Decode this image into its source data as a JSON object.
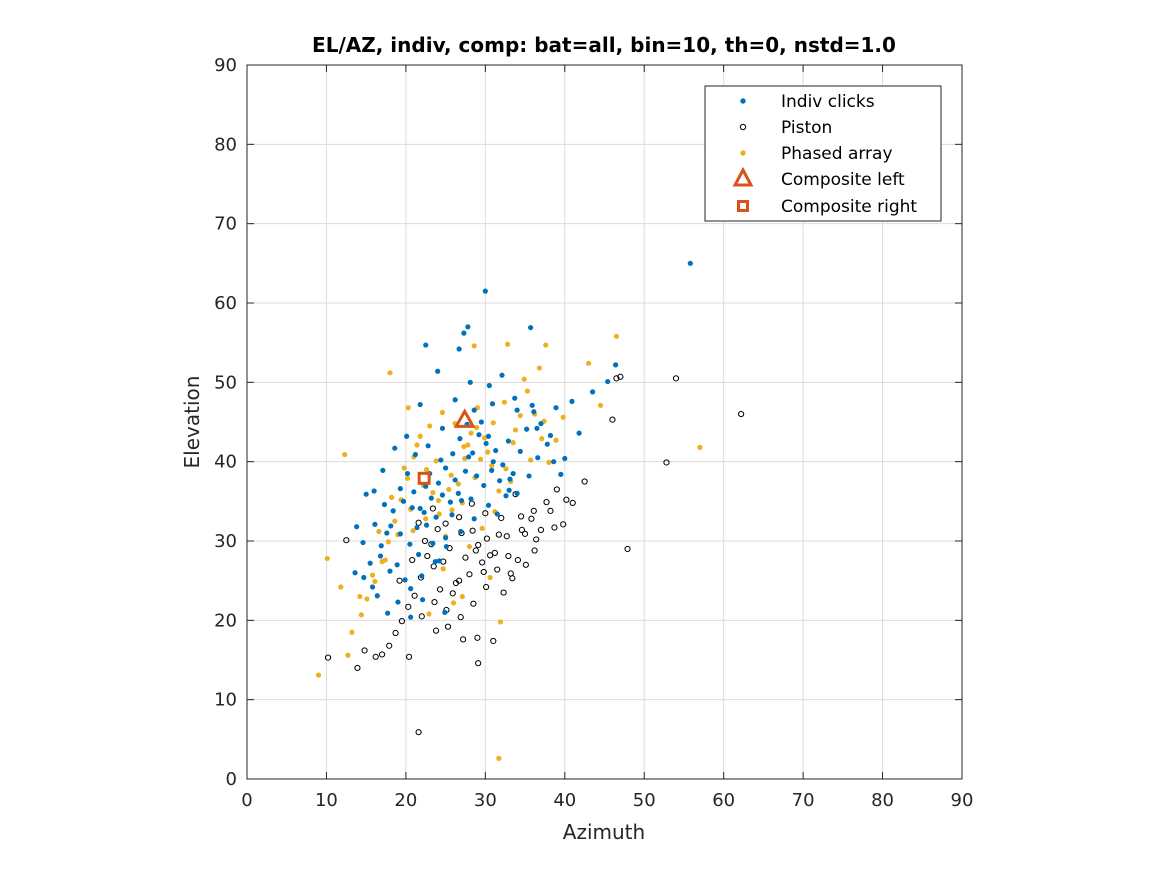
{
  "chart_data": {
    "type": "scatter",
    "title": "EL/AZ, indiv, comp: bat=all, bin=10, th=0, nstd=1.0",
    "xlabel": "Azimuth",
    "ylabel": "Elevation",
    "xlim": [
      0,
      90
    ],
    "ylim": [
      0,
      90
    ],
    "xticks": [
      0,
      10,
      20,
      30,
      40,
      50,
      60,
      70,
      80,
      90
    ],
    "yticks": [
      0,
      10,
      20,
      30,
      40,
      50,
      60,
      70,
      80,
      90
    ],
    "grid": true,
    "legend_position": "top-right",
    "series": [
      {
        "name": "Indiv clicks",
        "marker": "dot",
        "color": "#0072BD",
        "points": [
          [
            55.8,
            65.0
          ],
          [
            30.0,
            61.5
          ],
          [
            22.5,
            54.7
          ],
          [
            27.3,
            56.2
          ],
          [
            35.7,
            56.9
          ],
          [
            46.4,
            52.2
          ],
          [
            27.8,
            57.0
          ],
          [
            26.7,
            54.2
          ],
          [
            24.0,
            51.4
          ],
          [
            43.5,
            48.8
          ],
          [
            45.4,
            50.1
          ],
          [
            41.8,
            43.6
          ],
          [
            40.0,
            40.4
          ],
          [
            38.2,
            43.3
          ],
          [
            36.5,
            44.2
          ],
          [
            34.0,
            46.5
          ],
          [
            32.1,
            50.9
          ],
          [
            30.5,
            49.6
          ],
          [
            28.1,
            50.0
          ],
          [
            26.2,
            47.8
          ],
          [
            24.6,
            44.2
          ],
          [
            21.8,
            47.2
          ],
          [
            20.1,
            43.2
          ],
          [
            18.6,
            41.7
          ],
          [
            17.1,
            38.9
          ],
          [
            16.0,
            36.3
          ],
          [
            15.0,
            35.9
          ],
          [
            13.8,
            31.8
          ],
          [
            13.6,
            26.0
          ],
          [
            14.7,
            25.4
          ],
          [
            15.8,
            24.2
          ],
          [
            16.8,
            28.1
          ],
          [
            17.6,
            31.0
          ],
          [
            18.4,
            33.8
          ],
          [
            19.3,
            36.6
          ],
          [
            20.2,
            38.5
          ],
          [
            21.0,
            36.2
          ],
          [
            21.8,
            34.1
          ],
          [
            22.6,
            32.0
          ],
          [
            23.4,
            29.7
          ],
          [
            24.2,
            27.5
          ],
          [
            25.0,
            30.4
          ],
          [
            25.8,
            33.3
          ],
          [
            26.6,
            36.0
          ],
          [
            27.5,
            38.8
          ],
          [
            28.4,
            41.1
          ],
          [
            29.2,
            43.4
          ],
          [
            30.1,
            42.3
          ],
          [
            31.0,
            40.0
          ],
          [
            31.8,
            37.6
          ],
          [
            32.6,
            35.7
          ],
          [
            33.5,
            38.5
          ],
          [
            34.4,
            41.3
          ],
          [
            35.2,
            44.1
          ],
          [
            36.1,
            46.3
          ],
          [
            37.0,
            44.8
          ],
          [
            37.8,
            42.2
          ],
          [
            38.6,
            40.0
          ],
          [
            39.5,
            38.4
          ],
          [
            35.5,
            38.2
          ],
          [
            33.0,
            36.4
          ],
          [
            30.4,
            34.5
          ],
          [
            28.6,
            32.8
          ],
          [
            26.9,
            31.2
          ],
          [
            25.1,
            29.3
          ],
          [
            23.7,
            27.4
          ],
          [
            22.0,
            25.6
          ],
          [
            20.6,
            24.0
          ],
          [
            19.0,
            22.3
          ],
          [
            17.7,
            20.9
          ],
          [
            16.4,
            23.1
          ],
          [
            18.9,
            27.0
          ],
          [
            20.5,
            29.6
          ],
          [
            21.4,
            31.7
          ],
          [
            22.3,
            33.6
          ],
          [
            23.2,
            35.4
          ],
          [
            24.1,
            37.3
          ],
          [
            25.0,
            39.2
          ],
          [
            25.9,
            41.0
          ],
          [
            26.8,
            42.9
          ],
          [
            27.7,
            44.7
          ],
          [
            28.6,
            46.5
          ],
          [
            29.5,
            45.0
          ],
          [
            30.4,
            43.2
          ],
          [
            31.3,
            41.4
          ],
          [
            32.2,
            39.6
          ],
          [
            33.1,
            37.8
          ],
          [
            34.0,
            36.0
          ],
          [
            21.2,
            40.9
          ],
          [
            22.8,
            42.0
          ],
          [
            24.4,
            40.2
          ],
          [
            23.0,
            38.5
          ],
          [
            19.7,
            35.0
          ],
          [
            18.1,
            31.9
          ],
          [
            16.9,
            29.4
          ],
          [
            15.5,
            27.2
          ],
          [
            24.9,
            21.0
          ],
          [
            20.6,
            20.4
          ],
          [
            22.1,
            22.6
          ],
          [
            27.0,
            35.1
          ],
          [
            28.9,
            38.2
          ],
          [
            30.9,
            47.3
          ],
          [
            33.7,
            48.0
          ],
          [
            35.9,
            47.1
          ],
          [
            38.9,
            46.8
          ],
          [
            40.9,
            47.6
          ],
          [
            19.3,
            30.9
          ],
          [
            20.8,
            34.2
          ],
          [
            22.5,
            36.9
          ],
          [
            24.6,
            35.8
          ],
          [
            26.2,
            37.7
          ],
          [
            27.9,
            40.6
          ],
          [
            29.8,
            37.0
          ],
          [
            31.5,
            33.4
          ],
          [
            17.3,
            34.6
          ],
          [
            16.1,
            32.1
          ],
          [
            14.6,
            29.8
          ],
          [
            18.0,
            26.2
          ],
          [
            19.9,
            25.1
          ],
          [
            21.6,
            28.3
          ],
          [
            23.8,
            33.0
          ],
          [
            25.6,
            34.9
          ],
          [
            28.2,
            35.3
          ],
          [
            30.8,
            38.9
          ],
          [
            32.9,
            42.6
          ],
          [
            36.6,
            40.5
          ]
        ]
      },
      {
        "name": "Piston",
        "marker": "open-circle",
        "color": "#000000",
        "points": [
          [
            62.2,
            46.0
          ],
          [
            54.0,
            50.5
          ],
          [
            47.0,
            50.7
          ],
          [
            46.5,
            50.5
          ],
          [
            46.0,
            45.3
          ],
          [
            52.8,
            39.9
          ],
          [
            47.9,
            29.0
          ],
          [
            42.5,
            37.5
          ],
          [
            40.2,
            35.2
          ],
          [
            41.0,
            34.8
          ],
          [
            39.8,
            32.1
          ],
          [
            38.2,
            33.8
          ],
          [
            37.0,
            31.4
          ],
          [
            36.2,
            28.8
          ],
          [
            35.0,
            30.9
          ],
          [
            34.1,
            27.6
          ],
          [
            33.2,
            25.9
          ],
          [
            32.3,
            23.5
          ],
          [
            31.5,
            26.4
          ],
          [
            30.6,
            28.2
          ],
          [
            29.8,
            26.1
          ],
          [
            29.1,
            29.5
          ],
          [
            28.4,
            31.3
          ],
          [
            27.5,
            27.9
          ],
          [
            26.7,
            25.0
          ],
          [
            25.9,
            23.4
          ],
          [
            25.1,
            21.3
          ],
          [
            24.3,
            23.9
          ],
          [
            23.5,
            26.8
          ],
          [
            22.7,
            28.1
          ],
          [
            21.9,
            25.4
          ],
          [
            21.1,
            23.1
          ],
          [
            20.3,
            21.7
          ],
          [
            19.5,
            19.9
          ],
          [
            18.7,
            18.4
          ],
          [
            17.9,
            16.8
          ],
          [
            17.0,
            15.7
          ],
          [
            16.2,
            15.4
          ],
          [
            14.8,
            16.2
          ],
          [
            13.9,
            14.0
          ],
          [
            10.2,
            15.3
          ],
          [
            12.5,
            30.1
          ],
          [
            21.6,
            5.9
          ],
          [
            29.1,
            14.6
          ],
          [
            29.0,
            17.8
          ],
          [
            27.2,
            17.6
          ],
          [
            23.8,
            18.7
          ],
          [
            20.4,
            15.4
          ],
          [
            31.0,
            17.4
          ],
          [
            36.1,
            33.8
          ],
          [
            33.8,
            35.9
          ],
          [
            32.0,
            32.9
          ],
          [
            30.2,
            30.3
          ],
          [
            28.8,
            28.8
          ],
          [
            27.0,
            31.0
          ],
          [
            25.5,
            29.1
          ],
          [
            24.0,
            31.5
          ],
          [
            22.4,
            30.0
          ],
          [
            20.8,
            27.6
          ],
          [
            19.2,
            25.0
          ],
          [
            35.8,
            32.8
          ],
          [
            37.7,
            34.9
          ],
          [
            39.0,
            36.5
          ],
          [
            34.5,
            33.1
          ],
          [
            32.7,
            30.6
          ],
          [
            31.2,
            28.5
          ],
          [
            29.6,
            27.3
          ],
          [
            28.0,
            25.8
          ],
          [
            26.3,
            24.7
          ],
          [
            24.7,
            27.4
          ],
          [
            23.2,
            29.6
          ],
          [
            21.6,
            32.3
          ],
          [
            30.1,
            24.2
          ],
          [
            28.5,
            22.1
          ],
          [
            26.9,
            20.4
          ],
          [
            25.3,
            19.2
          ],
          [
            23.6,
            22.3
          ],
          [
            22.0,
            20.5
          ],
          [
            32.9,
            28.1
          ],
          [
            34.6,
            31.4
          ],
          [
            36.4,
            30.2
          ],
          [
            38.7,
            31.7
          ],
          [
            35.1,
            27.0
          ],
          [
            33.4,
            25.3
          ],
          [
            31.7,
            30.8
          ],
          [
            30.0,
            33.5
          ],
          [
            28.3,
            34.7
          ],
          [
            26.7,
            33.0
          ],
          [
            25.0,
            32.2
          ],
          [
            23.4,
            34.1
          ]
        ]
      },
      {
        "name": "Phased array",
        "marker": "dot",
        "color": "#EDB120",
        "points": [
          [
            46.5,
            55.8
          ],
          [
            57.0,
            41.8
          ],
          [
            43.0,
            52.4
          ],
          [
            37.6,
            54.7
          ],
          [
            28.6,
            54.6
          ],
          [
            18.0,
            51.2
          ],
          [
            32.8,
            54.8
          ],
          [
            20.3,
            46.8
          ],
          [
            9.0,
            13.1
          ],
          [
            31.7,
            2.6
          ],
          [
            10.1,
            27.8
          ],
          [
            12.3,
            40.9
          ],
          [
            11.8,
            24.2
          ],
          [
            13.2,
            18.5
          ],
          [
            12.7,
            15.6
          ],
          [
            14.4,
            20.7
          ],
          [
            15.1,
            22.7
          ],
          [
            16.1,
            24.9
          ],
          [
            17.0,
            27.4
          ],
          [
            17.8,
            29.9
          ],
          [
            18.6,
            32.5
          ],
          [
            19.4,
            35.2
          ],
          [
            20.2,
            37.9
          ],
          [
            21.0,
            40.6
          ],
          [
            21.8,
            43.2
          ],
          [
            22.6,
            39.0
          ],
          [
            23.4,
            36.1
          ],
          [
            24.2,
            33.4
          ],
          [
            25.0,
            30.6
          ],
          [
            25.8,
            33.9
          ],
          [
            26.6,
            37.2
          ],
          [
            27.4,
            40.4
          ],
          [
            28.2,
            43.6
          ],
          [
            29.0,
            46.8
          ],
          [
            29.9,
            43.0
          ],
          [
            30.8,
            39.5
          ],
          [
            31.7,
            36.3
          ],
          [
            32.6,
            39.1
          ],
          [
            33.5,
            42.4
          ],
          [
            34.4,
            45.8
          ],
          [
            35.3,
            48.9
          ],
          [
            36.2,
            46.0
          ],
          [
            37.1,
            42.9
          ],
          [
            38.0,
            39.9
          ],
          [
            38.9,
            42.7
          ],
          [
            39.8,
            45.6
          ],
          [
            44.5,
            47.1
          ],
          [
            33.8,
            44.0
          ],
          [
            30.3,
            41.2
          ],
          [
            28.7,
            38.0
          ],
          [
            27.1,
            34.8
          ],
          [
            25.4,
            36.5
          ],
          [
            23.8,
            40.1
          ],
          [
            22.2,
            37.0
          ],
          [
            20.6,
            34.0
          ],
          [
            19.0,
            30.8
          ],
          [
            17.4,
            27.6
          ],
          [
            15.8,
            25.7
          ],
          [
            14.2,
            23.0
          ],
          [
            16.6,
            31.2
          ],
          [
            18.2,
            35.5
          ],
          [
            19.8,
            39.2
          ],
          [
            21.4,
            42.1
          ],
          [
            23.0,
            44.5
          ],
          [
            24.6,
            46.2
          ],
          [
            26.2,
            44.8
          ],
          [
            27.8,
            42.1
          ],
          [
            29.4,
            40.3
          ],
          [
            31.0,
            44.9
          ],
          [
            32.4,
            47.5
          ],
          [
            34.9,
            50.4
          ],
          [
            36.8,
            51.8
          ],
          [
            24.7,
            26.5
          ],
          [
            26.0,
            22.2
          ],
          [
            22.9,
            20.8
          ],
          [
            28.0,
            29.3
          ],
          [
            29.6,
            31.6
          ],
          [
            31.2,
            33.7
          ],
          [
            20.9,
            31.3
          ],
          [
            22.5,
            32.8
          ],
          [
            24.1,
            35.1
          ],
          [
            25.7,
            38.3
          ],
          [
            27.3,
            41.9
          ],
          [
            28.9,
            44.3
          ],
          [
            31.9,
            19.8
          ],
          [
            27.1,
            23.0
          ],
          [
            30.6,
            25.4
          ],
          [
            33.2,
            37.5
          ],
          [
            35.7,
            40.2
          ],
          [
            37.4,
            45.1
          ]
        ]
      },
      {
        "name": "Composite left",
        "marker": "triangle",
        "color": "#D95319",
        "points": [
          [
            27.4,
            45.2
          ]
        ]
      },
      {
        "name": "Composite right",
        "marker": "square",
        "color": "#D95319",
        "points": [
          [
            22.3,
            37.9
          ]
        ]
      }
    ]
  }
}
